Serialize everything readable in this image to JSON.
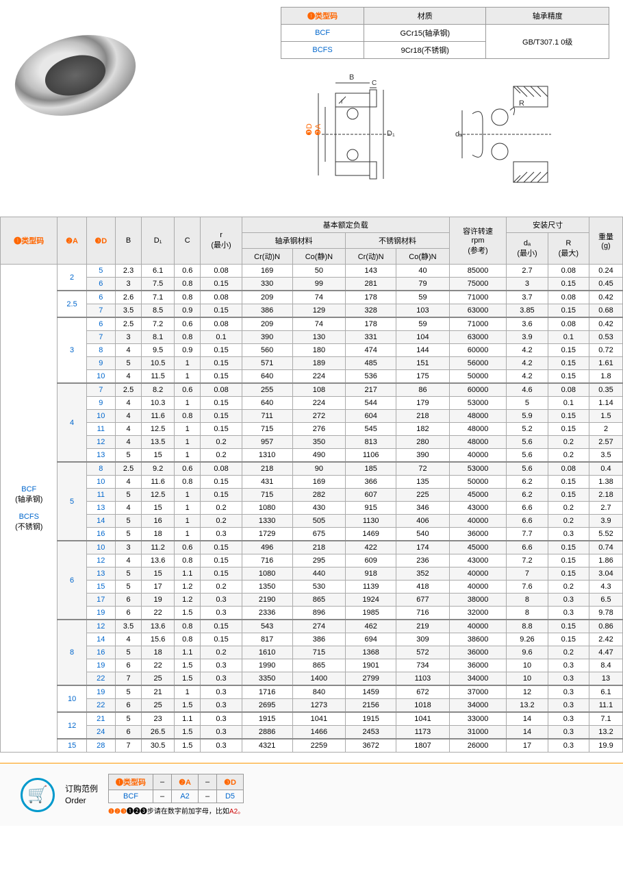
{
  "typeTable": {
    "headers": [
      "❶类型码",
      "材质",
      "轴承精度"
    ],
    "rows": [
      {
        "code": "BCF",
        "material": "GCr15(轴承钢)",
        "precision": "GB/T307.1 0级"
      },
      {
        "code": "BCFS",
        "material": "9Cr18(不锈钢)",
        "precision": ""
      }
    ]
  },
  "diagram": {
    "labels": {
      "B": "B",
      "C": "C",
      "r": "r",
      "D": "D",
      "A": "A",
      "D1": "D₁",
      "R": "R",
      "da": "dₐ"
    }
  },
  "mainTable": {
    "headers": {
      "typeCode": "❶类型码",
      "A": "❷A",
      "D": "❸D",
      "B": "B",
      "D1": "D₁",
      "C": "C",
      "rMin": "r\n(最小)",
      "load": "基本额定负载",
      "steelMat": "轴承钢材料",
      "stainMat": "不锈钢材料",
      "crDyn": "Cr(动)N",
      "coStat": "Co(静)N",
      "speed": "容许转速\nrpm\n(参考)",
      "mount": "安装尺寸",
      "daMin": "dₐ\n(最小)",
      "rMax": "R\n(最大)",
      "weight": "重量\n(g)"
    },
    "typeLabel": "BCF\n(轴承钢)\n\nBCFS\n(不锈钢)",
    "groups": [
      {
        "A": "2",
        "rows": [
          {
            "D": "5",
            "B": "2.3",
            "D1": "6.1",
            "C": "0.6",
            "r": "0.08",
            "Cr1": "169",
            "Co1": "50",
            "Cr2": "143",
            "Co2": "40",
            "rpm": "85000",
            "da": "2.7",
            "R": "0.08",
            "w": "0.24"
          },
          {
            "D": "6",
            "B": "3",
            "D1": "7.5",
            "C": "0.8",
            "r": "0.15",
            "Cr1": "330",
            "Co1": "99",
            "Cr2": "281",
            "Co2": "79",
            "rpm": "75000",
            "da": "3",
            "R": "0.15",
            "w": "0.45"
          }
        ]
      },
      {
        "A": "2.5",
        "rows": [
          {
            "D": "6",
            "B": "2.6",
            "D1": "7.1",
            "C": "0.8",
            "r": "0.08",
            "Cr1": "209",
            "Co1": "74",
            "Cr2": "178",
            "Co2": "59",
            "rpm": "71000",
            "da": "3.7",
            "R": "0.08",
            "w": "0.42"
          },
          {
            "D": "7",
            "B": "3.5",
            "D1": "8.5",
            "C": "0.9",
            "r": "0.15",
            "Cr1": "386",
            "Co1": "129",
            "Cr2": "328",
            "Co2": "103",
            "rpm": "63000",
            "da": "3.85",
            "R": "0.15",
            "w": "0.68"
          }
        ]
      },
      {
        "A": "3",
        "rows": [
          {
            "D": "6",
            "B": "2.5",
            "D1": "7.2",
            "C": "0.6",
            "r": "0.08",
            "Cr1": "209",
            "Co1": "74",
            "Cr2": "178",
            "Co2": "59",
            "rpm": "71000",
            "da": "3.6",
            "R": "0.08",
            "w": "0.42"
          },
          {
            "D": "7",
            "B": "3",
            "D1": "8.1",
            "C": "0.8",
            "r": "0.1",
            "Cr1": "390",
            "Co1": "130",
            "Cr2": "331",
            "Co2": "104",
            "rpm": "63000",
            "da": "3.9",
            "R": "0.1",
            "w": "0.53"
          },
          {
            "D": "8",
            "B": "4",
            "D1": "9.5",
            "C": "0.9",
            "r": "0.15",
            "Cr1": "560",
            "Co1": "180",
            "Cr2": "474",
            "Co2": "144",
            "rpm": "60000",
            "da": "4.2",
            "R": "0.15",
            "w": "0.72"
          },
          {
            "D": "9",
            "B": "5",
            "D1": "10.5",
            "C": "1",
            "r": "0.15",
            "Cr1": "571",
            "Co1": "189",
            "Cr2": "485",
            "Co2": "151",
            "rpm": "56000",
            "da": "4.2",
            "R": "0.15",
            "w": "1.61"
          },
          {
            "D": "10",
            "B": "4",
            "D1": "11.5",
            "C": "1",
            "r": "0.15",
            "Cr1": "640",
            "Co1": "224",
            "Cr2": "536",
            "Co2": "175",
            "rpm": "50000",
            "da": "4.2",
            "R": "0.15",
            "w": "1.8"
          }
        ]
      },
      {
        "A": "4",
        "rows": [
          {
            "D": "7",
            "B": "2.5",
            "D1": "8.2",
            "C": "0.6",
            "r": "0.08",
            "Cr1": "255",
            "Co1": "108",
            "Cr2": "217",
            "Co2": "86",
            "rpm": "60000",
            "da": "4.6",
            "R": "0.08",
            "w": "0.35"
          },
          {
            "D": "9",
            "B": "4",
            "D1": "10.3",
            "C": "1",
            "r": "0.15",
            "Cr1": "640",
            "Co1": "224",
            "Cr2": "544",
            "Co2": "179",
            "rpm": "53000",
            "da": "5",
            "R": "0.1",
            "w": "1.14"
          },
          {
            "D": "10",
            "B": "4",
            "D1": "11.6",
            "C": "0.8",
            "r": "0.15",
            "Cr1": "711",
            "Co1": "272",
            "Cr2": "604",
            "Co2": "218",
            "rpm": "48000",
            "da": "5.9",
            "R": "0.15",
            "w": "1.5"
          },
          {
            "D": "11",
            "B": "4",
            "D1": "12.5",
            "C": "1",
            "r": "0.15",
            "Cr1": "715",
            "Co1": "276",
            "Cr2": "545",
            "Co2": "182",
            "rpm": "48000",
            "da": "5.2",
            "R": "0.15",
            "w": "2"
          },
          {
            "D": "12",
            "B": "4",
            "D1": "13.5",
            "C": "1",
            "r": "0.2",
            "Cr1": "957",
            "Co1": "350",
            "Cr2": "813",
            "Co2": "280",
            "rpm": "48000",
            "da": "5.6",
            "R": "0.2",
            "w": "2.57"
          },
          {
            "D": "13",
            "B": "5",
            "D1": "15",
            "C": "1",
            "r": "0.2",
            "Cr1": "1310",
            "Co1": "490",
            "Cr2": "1106",
            "Co2": "390",
            "rpm": "40000",
            "da": "5.6",
            "R": "0.2",
            "w": "3.5"
          }
        ]
      },
      {
        "A": "5",
        "rows": [
          {
            "D": "8",
            "B": "2.5",
            "D1": "9.2",
            "C": "0.6",
            "r": "0.08",
            "Cr1": "218",
            "Co1": "90",
            "Cr2": "185",
            "Co2": "72",
            "rpm": "53000",
            "da": "5.6",
            "R": "0.08",
            "w": "0.4"
          },
          {
            "D": "10",
            "B": "4",
            "D1": "11.6",
            "C": "0.8",
            "r": "0.15",
            "Cr1": "431",
            "Co1": "169",
            "Cr2": "366",
            "Co2": "135",
            "rpm": "50000",
            "da": "6.2",
            "R": "0.15",
            "w": "1.38"
          },
          {
            "D": "11",
            "B": "5",
            "D1": "12.5",
            "C": "1",
            "r": "0.15",
            "Cr1": "715",
            "Co1": "282",
            "Cr2": "607",
            "Co2": "225",
            "rpm": "45000",
            "da": "6.2",
            "R": "0.15",
            "w": "2.18"
          },
          {
            "D": "13",
            "B": "4",
            "D1": "15",
            "C": "1",
            "r": "0.2",
            "Cr1": "1080",
            "Co1": "430",
            "Cr2": "915",
            "Co2": "346",
            "rpm": "43000",
            "da": "6.6",
            "R": "0.2",
            "w": "2.7"
          },
          {
            "D": "14",
            "B": "5",
            "D1": "16",
            "C": "1",
            "r": "0.2",
            "Cr1": "1330",
            "Co1": "505",
            "Cr2": "1130",
            "Co2": "406",
            "rpm": "40000",
            "da": "6.6",
            "R": "0.2",
            "w": "3.9"
          },
          {
            "D": "16",
            "B": "5",
            "D1": "18",
            "C": "1",
            "r": "0.3",
            "Cr1": "1729",
            "Co1": "675",
            "Cr2": "1469",
            "Co2": "540",
            "rpm": "36000",
            "da": "7.7",
            "R": "0.3",
            "w": "5.52"
          }
        ]
      },
      {
        "A": "6",
        "rows": [
          {
            "D": "10",
            "B": "3",
            "D1": "11.2",
            "C": "0.6",
            "r": "0.15",
            "Cr1": "496",
            "Co1": "218",
            "Cr2": "422",
            "Co2": "174",
            "rpm": "45000",
            "da": "6.6",
            "R": "0.15",
            "w": "0.74"
          },
          {
            "D": "12",
            "B": "4",
            "D1": "13.6",
            "C": "0.8",
            "r": "0.15",
            "Cr1": "716",
            "Co1": "295",
            "Cr2": "609",
            "Co2": "236",
            "rpm": "43000",
            "da": "7.2",
            "R": "0.15",
            "w": "1.86"
          },
          {
            "D": "13",
            "B": "5",
            "D1": "15",
            "C": "1.1",
            "r": "0.15",
            "Cr1": "1080",
            "Co1": "440",
            "Cr2": "918",
            "Co2": "352",
            "rpm": "40000",
            "da": "7",
            "R": "0.15",
            "w": "3.04"
          },
          {
            "D": "15",
            "B": "5",
            "D1": "17",
            "C": "1.2",
            "r": "0.2",
            "Cr1": "1350",
            "Co1": "530",
            "Cr2": "1139",
            "Co2": "418",
            "rpm": "40000",
            "da": "7.6",
            "R": "0.2",
            "w": "4.3"
          },
          {
            "D": "17",
            "B": "6",
            "D1": "19",
            "C": "1.2",
            "r": "0.3",
            "Cr1": "2190",
            "Co1": "865",
            "Cr2": "1924",
            "Co2": "677",
            "rpm": "38000",
            "da": "8",
            "R": "0.3",
            "w": "6.5"
          },
          {
            "D": "19",
            "B": "6",
            "D1": "22",
            "C": "1.5",
            "r": "0.3",
            "Cr1": "2336",
            "Co1": "896",
            "Cr2": "1985",
            "Co2": "716",
            "rpm": "32000",
            "da": "8",
            "R": "0.3",
            "w": "9.78"
          }
        ]
      },
      {
        "A": "8",
        "rows": [
          {
            "D": "12",
            "B": "3.5",
            "D1": "13.6",
            "C": "0.8",
            "r": "0.15",
            "Cr1": "543",
            "Co1": "274",
            "Cr2": "462",
            "Co2": "219",
            "rpm": "40000",
            "da": "8.8",
            "R": "0.15",
            "w": "0.86"
          },
          {
            "D": "14",
            "B": "4",
            "D1": "15.6",
            "C": "0.8",
            "r": "0.15",
            "Cr1": "817",
            "Co1": "386",
            "Cr2": "694",
            "Co2": "309",
            "rpm": "38600",
            "da": "9.26",
            "R": "0.15",
            "w": "2.42"
          },
          {
            "D": "16",
            "B": "5",
            "D1": "18",
            "C": "1.1",
            "r": "0.2",
            "Cr1": "1610",
            "Co1": "715",
            "Cr2": "1368",
            "Co2": "572",
            "rpm": "36000",
            "da": "9.6",
            "R": "0.2",
            "w": "4.47"
          },
          {
            "D": "19",
            "B": "6",
            "D1": "22",
            "C": "1.5",
            "r": "0.3",
            "Cr1": "1990",
            "Co1": "865",
            "Cr2": "1901",
            "Co2": "734",
            "rpm": "36000",
            "da": "10",
            "R": "0.3",
            "w": "8.4"
          },
          {
            "D": "22",
            "B": "7",
            "D1": "25",
            "C": "1.5",
            "r": "0.3",
            "Cr1": "3350",
            "Co1": "1400",
            "Cr2": "2799",
            "Co2": "1103",
            "rpm": "34000",
            "da": "10",
            "R": "0.3",
            "w": "13"
          }
        ]
      },
      {
        "A": "10",
        "rows": [
          {
            "D": "19",
            "B": "5",
            "D1": "21",
            "C": "1",
            "r": "0.3",
            "Cr1": "1716",
            "Co1": "840",
            "Cr2": "1459",
            "Co2": "672",
            "rpm": "37000",
            "da": "12",
            "R": "0.3",
            "w": "6.1"
          },
          {
            "D": "22",
            "B": "6",
            "D1": "25",
            "C": "1.5",
            "r": "0.3",
            "Cr1": "2695",
            "Co1": "1273",
            "Cr2": "2156",
            "Co2": "1018",
            "rpm": "34000",
            "da": "13.2",
            "R": "0.3",
            "w": "11.1"
          }
        ]
      },
      {
        "A": "12",
        "rows": [
          {
            "D": "21",
            "B": "5",
            "D1": "23",
            "C": "1.1",
            "r": "0.3",
            "Cr1": "1915",
            "Co1": "1041",
            "Cr2": "1915",
            "Co2": "1041",
            "rpm": "33000",
            "da": "14",
            "R": "0.3",
            "w": "7.1"
          },
          {
            "D": "24",
            "B": "6",
            "D1": "26.5",
            "C": "1.5",
            "r": "0.3",
            "Cr1": "2886",
            "Co1": "1466",
            "Cr2": "2453",
            "Co2": "1173",
            "rpm": "31000",
            "da": "14",
            "R": "0.3",
            "w": "13.2"
          }
        ]
      },
      {
        "A": "15",
        "rows": [
          {
            "D": "28",
            "B": "7",
            "D1": "30.5",
            "C": "1.5",
            "r": "0.3",
            "Cr1": "4321",
            "Co1": "2259",
            "Cr2": "3672",
            "Co2": "1807",
            "rpm": "26000",
            "da": "17",
            "R": "0.3",
            "w": "19.9"
          }
        ]
      }
    ]
  },
  "order": {
    "title1": "订购范例",
    "title2": "Order",
    "headers": [
      "❶类型码",
      "–",
      "❷A",
      "–",
      "❸D"
    ],
    "example": [
      "BCF",
      "–",
      "A2",
      "–",
      "D5"
    ],
    "note": "❶❷❸步请在数字前加字母，比如",
    "noteHighlight": "A2。"
  }
}
